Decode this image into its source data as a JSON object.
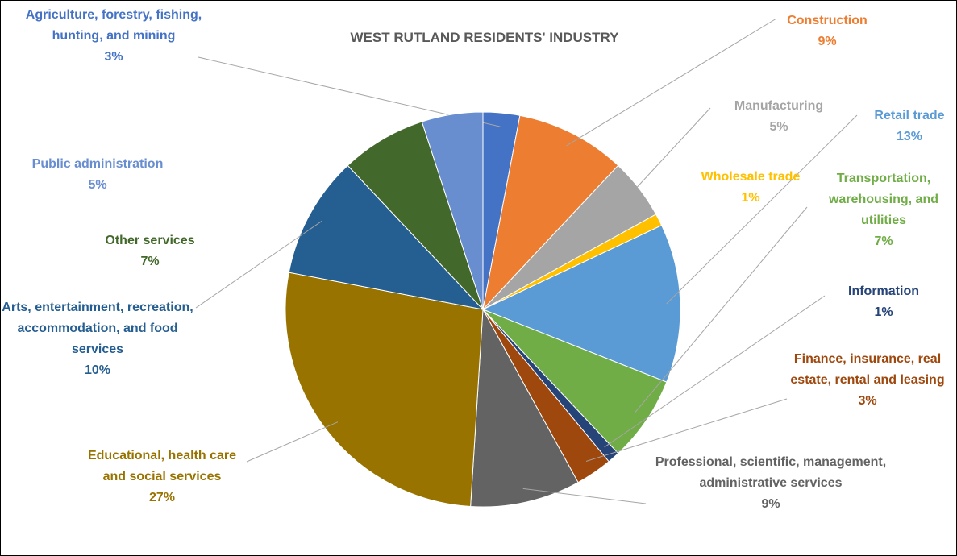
{
  "chart_data": {
    "type": "pie",
    "title": "WEST RUTLAND RESIDENTS' INDUSTRY",
    "categories": [
      "Agriculture, forestry, fishing, hunting, and mining",
      "Construction",
      "Manufacturing",
      "Wholesale trade",
      "Retail trade",
      "Transportation, warehousing, and utilities",
      "Information",
      "Finance, insurance, real estate, rental and leasing",
      "Professional, scientific, management, administrative services",
      "Educational, health care and social services",
      "Arts, entertainment, recreation, accommodation, and food services",
      "Other services",
      "Public administration"
    ],
    "values": [
      3,
      9,
      5,
      1,
      13,
      7,
      1,
      3,
      9,
      27,
      10,
      7,
      5
    ],
    "value_labels": [
      "3%",
      "9%",
      "5%",
      "1%",
      "13%",
      "7%",
      "1%",
      "3%",
      "9%",
      "27%",
      "10%",
      "7%",
      "5%"
    ],
    "colors": [
      "#4472c4",
      "#ed7d31",
      "#a5a5a5",
      "#ffc000",
      "#5b9bd5",
      "#70ad47",
      "#264478",
      "#9e480e",
      "#636363",
      "#997300",
      "#255e91",
      "#43682b",
      "#698ed0"
    ]
  }
}
